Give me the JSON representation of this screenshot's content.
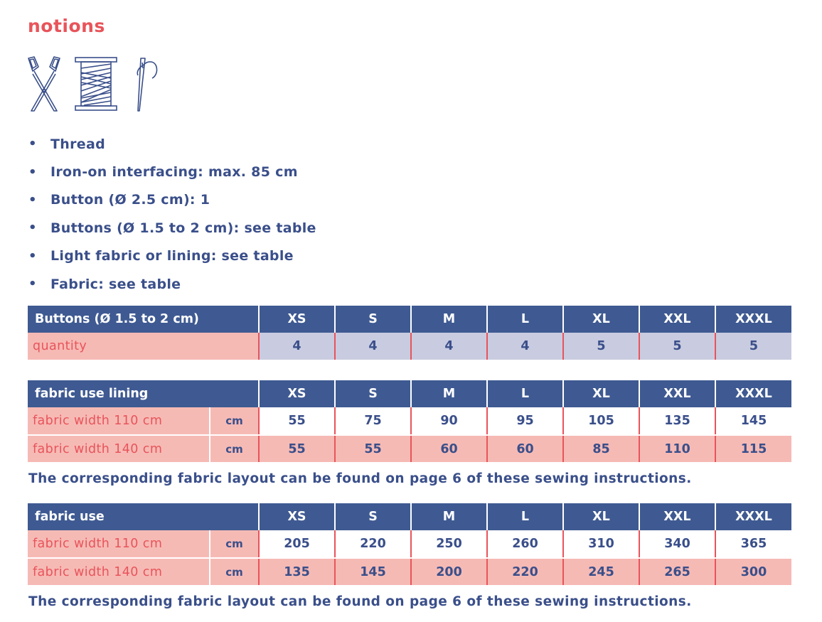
{
  "title": "notions",
  "icons": [
    "scissors-icon",
    "thread-spool-icon",
    "needle-icon"
  ],
  "notions": [
    "Thread",
    "Iron-on interfacing: max. 85 cm",
    "Button (Ø 2.5 cm): 1",
    "Buttons (Ø 1.5 to 2 cm): see table",
    "Light fabric or lining: see table",
    "Fabric: see table"
  ],
  "bullet": "•",
  "sizes": [
    "XS",
    "S",
    "M",
    "L",
    "XL",
    "XXL",
    "XXXL"
  ],
  "buttons_table": {
    "header": "Buttons (Ø 1.5 to 2 cm)",
    "row_label": "quantity",
    "values": [
      "4",
      "4",
      "4",
      "4",
      "5",
      "5",
      "5"
    ]
  },
  "lining_table": {
    "header": "fabric use lining",
    "rows": [
      {
        "label": "fabric width 110 cm",
        "unit": "cm",
        "values": [
          "55",
          "75",
          "90",
          "95",
          "105",
          "135",
          "145"
        ]
      },
      {
        "label": "fabric width 140 cm",
        "unit": "cm",
        "values": [
          "55",
          "55",
          "60",
          "60",
          "85",
          "110",
          "115"
        ]
      }
    ]
  },
  "fabric_table": {
    "header": "fabric use",
    "rows": [
      {
        "label": "fabric width 110 cm",
        "unit": "cm",
        "values": [
          "205",
          "220",
          "250",
          "260",
          "310",
          "340",
          "365"
        ]
      },
      {
        "label": "fabric width 140 cm",
        "unit": "cm",
        "values": [
          "135",
          "145",
          "200",
          "220",
          "245",
          "265",
          "300"
        ]
      }
    ]
  },
  "note_lining": "The corresponding fabric layout can be found on page 6 of these sewing instructions.",
  "note_fabric": "The corresponding fabric layout can be found on page 6 of these sewing instructions.",
  "colors": {
    "accent_red": "#e8545a",
    "navy": "#3a4f8a",
    "header_blue": "#3f5a92",
    "pink": "#f6bab5",
    "lavender": "#c9cbe0"
  }
}
